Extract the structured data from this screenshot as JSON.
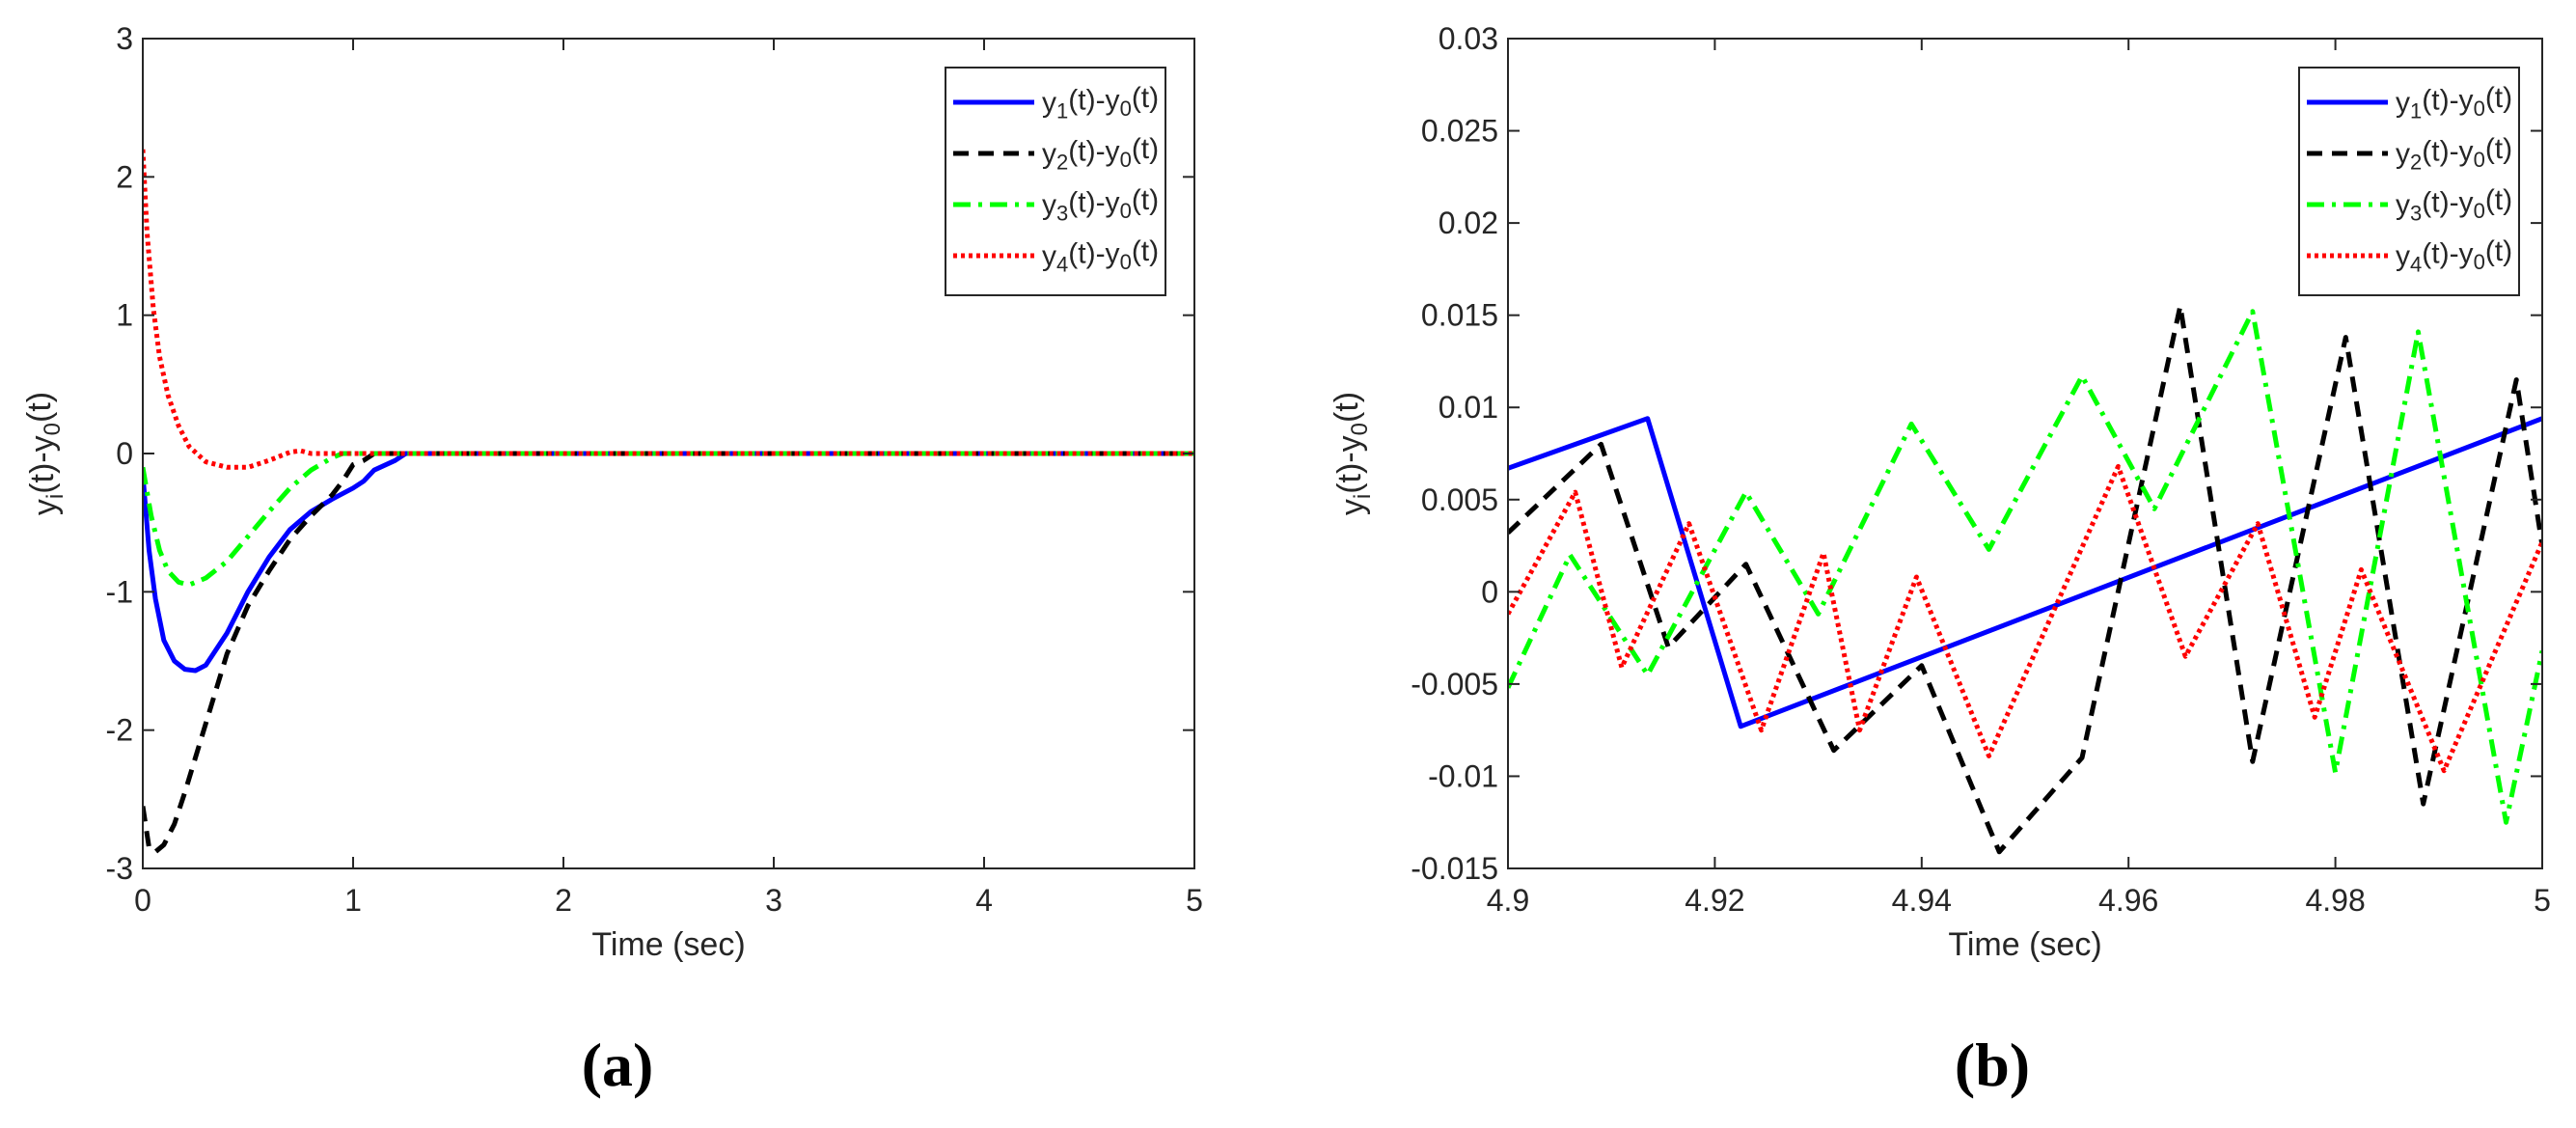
{
  "chart_data": [
    {
      "type": "line",
      "panel_label": "(a)",
      "xlabel": "Time (sec)",
      "ylabel": "y_i(t)-y_0(t)",
      "xlim": [
        0,
        5
      ],
      "ylim": [
        -3,
        3
      ],
      "xticks": [
        0,
        1,
        2,
        3,
        4,
        5
      ],
      "yticks": [
        -3,
        -2,
        -1,
        0,
        1,
        2,
        3
      ],
      "grid": false,
      "legend_position": "top-right",
      "series": [
        {
          "name": "y_1(t)-y_0(t)",
          "color": "#0000ff",
          "dash": "solid",
          "x": [
            0,
            0.03,
            0.06,
            0.1,
            0.15,
            0.2,
            0.25,
            0.3,
            0.4,
            0.5,
            0.6,
            0.7,
            0.8,
            0.9,
            1.0,
            1.05,
            1.1,
            1.2,
            1.25,
            1.3,
            1.5,
            2,
            3,
            4,
            5
          ],
          "y": [
            -0.15,
            -0.7,
            -1.05,
            -1.35,
            -1.5,
            -1.56,
            -1.57,
            -1.53,
            -1.3,
            -1.0,
            -0.75,
            -0.55,
            -0.42,
            -0.33,
            -0.25,
            -0.2,
            -0.12,
            -0.05,
            0,
            0,
            0,
            0,
            0,
            0,
            0
          ]
        },
        {
          "name": "y_2(t)-y_0(t)",
          "color": "#000000",
          "dash": "dashed",
          "x": [
            0,
            0.03,
            0.06,
            0.1,
            0.15,
            0.2,
            0.3,
            0.4,
            0.5,
            0.6,
            0.7,
            0.8,
            0.9,
            0.95,
            1.0,
            1.05,
            1.1,
            1.2,
            1.5,
            2,
            3,
            4,
            5
          ],
          "y": [
            -2.55,
            -2.85,
            -2.88,
            -2.83,
            -2.68,
            -2.45,
            -1.95,
            -1.45,
            -1.1,
            -0.85,
            -0.62,
            -0.45,
            -0.3,
            -0.2,
            -0.08,
            -0.05,
            0,
            0,
            0,
            0,
            0,
            0,
            0
          ]
        },
        {
          "name": "y_3(t)-y_0(t)",
          "color": "#00ff00",
          "dash": "dash-dot",
          "x": [
            0,
            0.04,
            0.08,
            0.12,
            0.17,
            0.22,
            0.3,
            0.4,
            0.5,
            0.6,
            0.7,
            0.8,
            0.9,
            0.95,
            1.0,
            1.5,
            2,
            3,
            4,
            5
          ],
          "y": [
            -0.1,
            -0.45,
            -0.7,
            -0.85,
            -0.93,
            -0.95,
            -0.9,
            -0.78,
            -0.6,
            -0.42,
            -0.25,
            -0.12,
            -0.03,
            0,
            0,
            0,
            0,
            0,
            0,
            0
          ]
        },
        {
          "name": "y_4(t)-y_0(t)",
          "color": "#ff0000",
          "dash": "dotted",
          "x": [
            0,
            0.02,
            0.05,
            0.08,
            0.12,
            0.17,
            0.22,
            0.3,
            0.4,
            0.5,
            0.6,
            0.7,
            0.75,
            0.8,
            0.9,
            1.0,
            1.5,
            2,
            3,
            4,
            5
          ],
          "y": [
            2.2,
            1.6,
            1.05,
            0.7,
            0.42,
            0.2,
            0.05,
            -0.06,
            -0.1,
            -0.1,
            -0.05,
            0.01,
            0.02,
            0.0,
            0.0,
            0,
            0,
            0,
            0,
            0,
            0
          ]
        }
      ]
    },
    {
      "type": "line",
      "panel_label": "(b)",
      "xlabel": "Time (sec)",
      "ylabel": "y_i(t)-y_0(t)",
      "xlim": [
        4.9,
        5
      ],
      "ylim": [
        -0.015,
        0.03
      ],
      "xticks": [
        4.9,
        4.92,
        4.94,
        4.96,
        4.98,
        5
      ],
      "xtick_labels": [
        "4.9",
        "4.92",
        "4.94",
        "4.96",
        "4.98",
        "5"
      ],
      "yticks": [
        -0.015,
        -0.01,
        -0.005,
        0,
        0.005,
        0.01,
        0.015,
        0.02,
        0.025,
        0.03
      ],
      "ytick_labels": [
        "-0.015",
        "-0.01",
        "-0.005",
        "0",
        "0.005",
        "0.01",
        "0.015",
        "0.02",
        "0.025",
        "0.03"
      ],
      "grid": false,
      "legend_position": "top-right",
      "series": [
        {
          "name": "y_1(t)-y_0(t)",
          "color": "#0000ff",
          "dash": "solid",
          "x": [
            4.9,
            4.9135,
            4.9225,
            5.0
          ],
          "y": [
            0.0067,
            0.0094,
            -0.0073,
            0.0094
          ]
        },
        {
          "name": "y_2(t)-y_0(t)",
          "color": "#000000",
          "dash": "dashed",
          "x": [
            4.9,
            4.909,
            4.9155,
            4.923,
            4.9315,
            4.94,
            4.9475,
            4.9555,
            4.965,
            4.972,
            4.981,
            4.9885,
            4.9975,
            5.0
          ],
          "y": [
            0.0032,
            0.008,
            -0.003,
            0.0015,
            -0.0086,
            -0.004,
            -0.0141,
            -0.009,
            0.0155,
            -0.0092,
            0.0138,
            -0.0115,
            0.0115,
            0.0025
          ]
        },
        {
          "name": "y_3(t)-y_0(t)",
          "color": "#00ff00",
          "dash": "dash-dot",
          "x": [
            4.9,
            4.906,
            4.9135,
            4.923,
            4.93,
            4.939,
            4.9465,
            4.9555,
            4.9625,
            4.972,
            4.98,
            4.988,
            4.9965,
            5.0
          ],
          "y": [
            -0.0052,
            0.002,
            -0.0045,
            0.0054,
            -0.0012,
            0.0091,
            0.0023,
            0.0117,
            0.0045,
            0.0152,
            -0.0098,
            0.0141,
            -0.0125,
            -0.0032
          ]
        },
        {
          "name": "y_4(t)-y_0(t)",
          "color": "#ff0000",
          "dash": "dotted",
          "x": [
            4.9,
            4.9065,
            4.911,
            4.9175,
            4.9245,
            4.9305,
            4.934,
            4.9395,
            4.9465,
            4.959,
            4.9655,
            4.9725,
            4.978,
            4.9825,
            4.9905,
            5.0
          ],
          "y": [
            -0.0012,
            0.0054,
            -0.0041,
            0.0037,
            -0.0075,
            0.0021,
            -0.0075,
            0.0008,
            -0.0089,
            0.0068,
            -0.0035,
            0.0037,
            -0.0068,
            0.0012,
            -0.0097,
            0.0027
          ]
        }
      ]
    }
  ]
}
